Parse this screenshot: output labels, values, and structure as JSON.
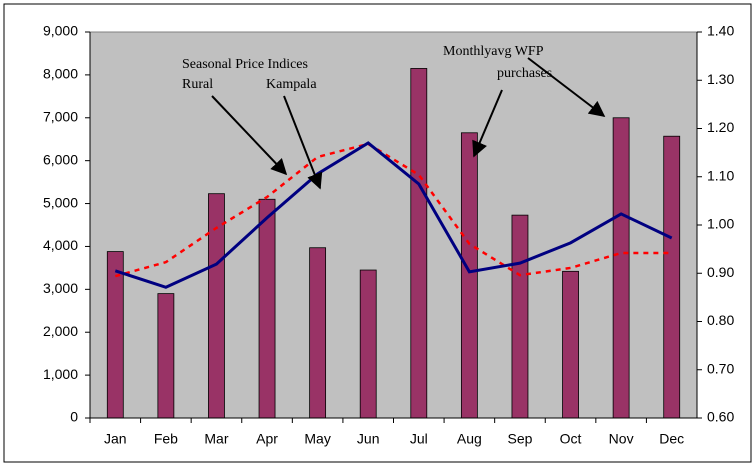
{
  "chart_data": {
    "type": "bar-line",
    "categories": [
      "Jan",
      "Feb",
      "Mar",
      "Apr",
      "May",
      "Jun",
      "Jul",
      "Aug",
      "Sep",
      "Oct",
      "Nov",
      "Dec"
    ],
    "series": [
      {
        "type": "bar",
        "color": "#993366",
        "values": [
          3880,
          2900,
          5230,
          5100,
          3970,
          3450,
          8150,
          6650,
          4730,
          3420,
          7000,
          6570
        ]
      },
      {
        "type": "line",
        "name": "Rural",
        "axis": "y2",
        "color": "#ff0000",
        "dashed": true,
        "values": [
          0.894,
          0.923,
          0.994,
          1.058,
          1.141,
          1.168,
          1.104,
          0.961,
          0.896,
          0.911,
          0.942,
          0.942
        ]
      },
      {
        "type": "line",
        "name": "Kampala",
        "axis": "y2",
        "color": "#000080",
        "dashed": false,
        "values": [
          0.905,
          0.871,
          0.919,
          1.015,
          1.106,
          1.17,
          1.085,
          0.903,
          0.921,
          0.963,
          1.023,
          0.973
        ]
      }
    ],
    "annotations": [
      "Seasonal Price Indices",
      "Monthlyavg WFP",
      "purchases"
    ],
    "ylim": [
      0,
      9000
    ],
    "yticks": [
      0,
      {
        "value": 1000,
        "label": "1,000"
      },
      {
        "value": 2000,
        "label": "2,000"
      },
      {
        "value": 3000,
        "label": "3,000"
      },
      {
        "value": 4000,
        "label": "4,000"
      },
      {
        "value": 5000,
        "label": "5,000"
      },
      {
        "value": 6000,
        "label": "6,000"
      },
      {
        "value": 7000,
        "label": "7,000"
      },
      {
        "value": 8000,
        "label": "8,000"
      },
      {
        "value": 9000,
        "label": "9,000"
      }
    ],
    "y2lim": [
      0.6,
      1.4
    ],
    "y2ticks": [
      {
        "value": 0.6,
        "label": "0.60"
      },
      {
        "value": 0.7,
        "label": "0.70"
      },
      {
        "value": 0.8,
        "label": "0.80"
      },
      {
        "value": 0.9,
        "label": "0.90"
      },
      {
        "value": 1.0,
        "label": "1.00"
      },
      {
        "value": 1.1,
        "label": "1.10"
      },
      {
        "value": 1.2,
        "label": "1.20"
      },
      {
        "value": 1.3,
        "label": "1.30"
      },
      {
        "value": 1.4,
        "label": "1.40"
      }
    ],
    "plot_background": "#c0c0c0"
  }
}
